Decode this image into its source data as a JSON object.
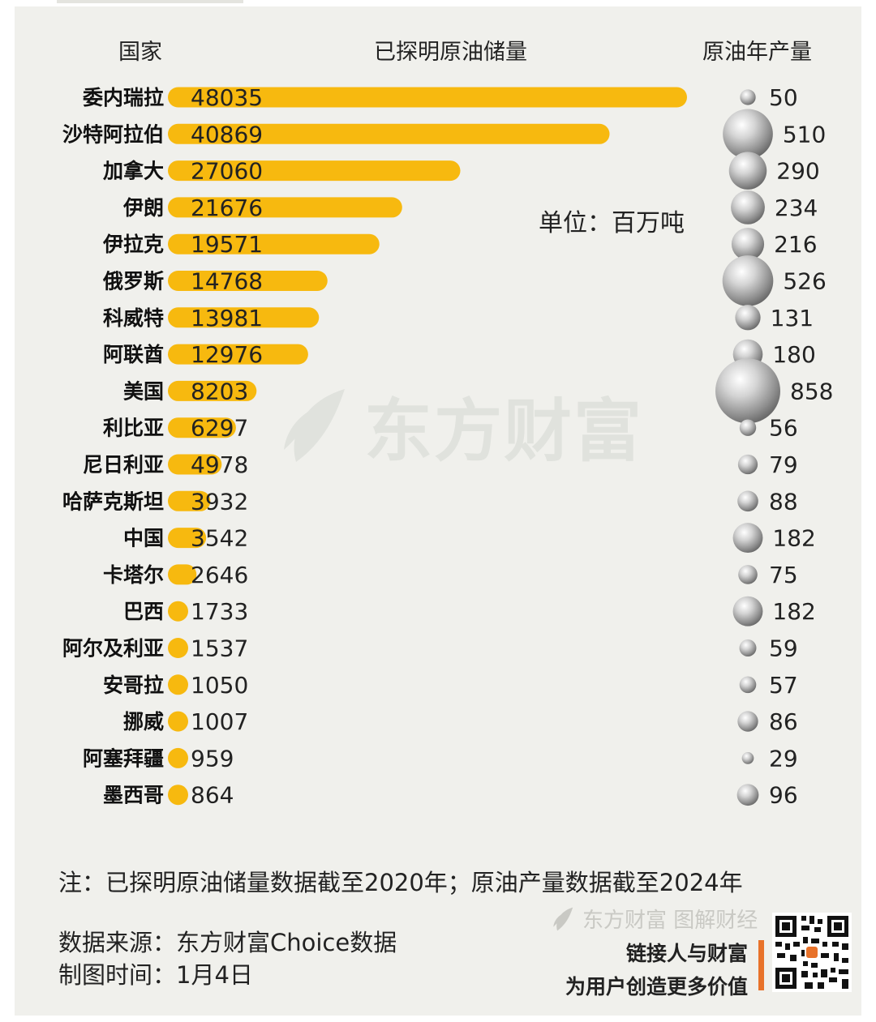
{
  "headers": {
    "country": "国家",
    "reserves": "已探明原油储量",
    "production": "原油年产量"
  },
  "unit_label": "单位：百万吨",
  "watermark": "东方财富",
  "note": "注：已探明原油储量数据截至2020年；原油产量数据截至2024年",
  "source": "数据来源：东方财富Choice数据",
  "made_time": "制图时间：1月4日",
  "brand_sub": "东方财富 图解财经",
  "slogan_line1": "链接人与财富",
  "slogan_line2": "为用户创造更多价值",
  "colors": {
    "bar": "#f7b90f",
    "bubble_light": "#ffffff",
    "bubble_dark": "#6a6a6a",
    "background": "#f0f0ec",
    "accent": "#e8722a"
  },
  "icons": {
    "watermark_logo": "leaf-logo-icon",
    "brand_logo": "leaf-logo-icon",
    "qr": "qr-code-icon"
  },
  "chart_data": {
    "type": "bar",
    "orientation": "horizontal",
    "categories": [
      "委内瑞拉",
      "沙特阿拉伯",
      "加拿大",
      "伊朗",
      "伊拉克",
      "俄罗斯",
      "科威特",
      "阿联酋",
      "美国",
      "利比亚",
      "尼日利亚",
      "哈萨克斯坦",
      "中国",
      "卡塔尔",
      "巴西",
      "阿尔及利亚",
      "安哥拉",
      "挪威",
      "阿塞拜疆",
      "墨西哥"
    ],
    "series": [
      {
        "name": "已探明原油储量",
        "values": [
          48035,
          40869,
          27060,
          21676,
          19571,
          14768,
          13981,
          12976,
          8203,
          6297,
          4978,
          3932,
          3542,
          2646,
          1733,
          1537,
          1050,
          1007,
          959,
          864
        ]
      },
      {
        "name": "原油年产量",
        "values": [
          50,
          510,
          290,
          234,
          216,
          526,
          131,
          180,
          858,
          56,
          79,
          88,
          182,
          75,
          182,
          59,
          57,
          86,
          29,
          96
        ]
      }
    ],
    "unit": "单位：百万吨",
    "legend": "none",
    "grid": false
  }
}
